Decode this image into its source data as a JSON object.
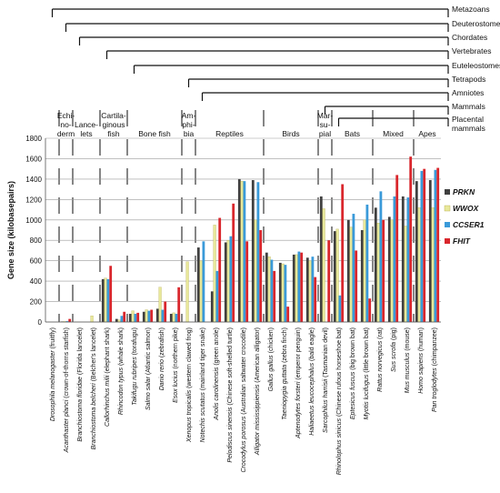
{
  "chart_data": {
    "type": "bar",
    "ylabel": "Gene size (kilobasepairs)",
    "ylim": [
      0,
      1800
    ],
    "yticks": [
      0,
      200,
      400,
      600,
      800,
      1000,
      1200,
      1400,
      1600,
      1800
    ],
    "grid": true,
    "legend_position": "right",
    "series": [
      {
        "name": "PRKN",
        "color": "#404040"
      },
      {
        "name": "WWOX",
        "color": "#e8e89a"
      },
      {
        "name": "CCSER1",
        "color": "#3a9ad9"
      },
      {
        "name": "FHIT",
        "color": "#d9262c"
      }
    ],
    "species": [
      {
        "sci": "Drosophila melanogaster",
        "common": "(fruitfly)",
        "values": [
          0,
          0,
          0,
          0
        ]
      },
      {
        "sci": "Acanthaster planci",
        "common": "(crown-of-thorns starfish)",
        "values": [
          5,
          5,
          8,
          30
        ]
      },
      {
        "sci": "Branchiostoma floridae",
        "common": "(Florida lancelet)",
        "values": [
          0,
          0,
          0,
          0
        ]
      },
      {
        "sci": "Branchiostoma belcheri",
        "common": "(Belcher's lancelet)",
        "values": [
          0,
          60,
          0,
          0
        ]
      },
      {
        "sci": "Callorhinchus milii",
        "common": "(elephant shark)",
        "values": [
          420,
          430,
          420,
          550
        ]
      },
      {
        "sci": "Rhincodon typus",
        "common": "(whale shark)",
        "values": [
          30,
          20,
          60,
          100
        ]
      },
      {
        "sci": "Takifugu rubripes",
        "common": "(torafugu)",
        "values": [
          80,
          110,
          80,
          90
        ]
      },
      {
        "sci": "Salmo salar",
        "common": "(Atlantic salmon)",
        "values": [
          100,
          120,
          110,
          120
        ]
      },
      {
        "sci": "Danio rerio",
        "common": "(zebrafish)",
        "values": [
          130,
          340,
          120,
          200
        ]
      },
      {
        "sci": "Esox lucius",
        "common": "(northern pike)",
        "values": [
          80,
          90,
          80,
          340
        ]
      },
      {
        "sci": "Xenopus tropicalis",
        "common": "(western clawed frog)",
        "values": [
          0,
          590,
          0,
          0
        ]
      },
      {
        "sci": "Notechis scutatus",
        "common": "(mainland tiger snake)",
        "values": [
          730,
          600,
          790,
          0
        ]
      },
      {
        "sci": "Anolis carolinensis",
        "common": "(green anole)",
        "values": [
          300,
          950,
          500,
          1020
        ]
      },
      {
        "sci": "Pelodiscus sinensis",
        "common": "(Chinese soft-shelled turtle)",
        "values": [
          780,
          800,
          840,
          1160
        ]
      },
      {
        "sci": "Crocodylus porosus",
        "common": "(Australian saltwater crocodile)",
        "values": [
          1400,
          1380,
          1380,
          790
        ]
      },
      {
        "sci": "Alligator mississippiensis",
        "common": "(American alligator)",
        "values": [
          1390,
          1000,
          1370,
          900
        ]
      },
      {
        "sci": "Gallus gallus",
        "common": "(chicken)",
        "values": [
          680,
          640,
          610,
          500
        ]
      },
      {
        "sci": "Taeniopygia guttata",
        "common": "(zebra finch)",
        "values": [
          580,
          570,
          560,
          150
        ]
      },
      {
        "sci": "Aptenodytes forsteri",
        "common": "(emperor penguin)",
        "values": [
          660,
          660,
          690,
          680
        ]
      },
      {
        "sci": "Haliaeetus leucocephalus",
        "common": "(bald eagle)",
        "values": [
          630,
          600,
          640,
          440
        ]
      },
      {
        "sci": "Sarcophilus harrisii",
        "common": "(Tasmanian devil)",
        "values": [
          1230,
          1110,
          0,
          800
        ]
      },
      {
        "sci": "Rhinolophus sinicus",
        "common": "(Chinese rufous horseshoe bat)",
        "values": [
          890,
          910,
          260,
          1350
        ]
      },
      {
        "sci": "Eptesicus fuscus",
        "common": "(big brown bat)",
        "values": [
          1000,
          930,
          1060,
          700
        ]
      },
      {
        "sci": "Myotis lucifugus",
        "common": "(little brown bat)",
        "values": [
          900,
          1000,
          1150,
          230
        ]
      },
      {
        "sci": "Rattus norvegicus",
        "common": "(rat)",
        "values": [
          1120,
          970,
          1280,
          1000
        ]
      },
      {
        "sci": "Sus scrofa",
        "common": "(pig)",
        "values": [
          1030,
          1000,
          1230,
          1440
        ]
      },
      {
        "sci": "Mus musculus",
        "common": "(mouse)",
        "values": [
          1230,
          940,
          1220,
          1620
        ]
      },
      {
        "sci": "Homo sapiens",
        "common": "(human)",
        "values": [
          1380,
          1120,
          1480,
          1500
        ]
      },
      {
        "sci": "Pan troglodytes",
        "common": "(chimpanzee)",
        "values": [
          1390,
          1120,
          1490,
          1510
        ]
      }
    ],
    "groups": [
      {
        "label": [
          "Echi-",
          "no-",
          "derm"
        ],
        "from": 1,
        "to": 1
      },
      {
        "label": [
          "Lance-",
          "lets"
        ],
        "from": 2,
        "to": 3
      },
      {
        "label": [
          "Cartila-",
          "ginous",
          "fish"
        ],
        "from": 4,
        "to": 5
      },
      {
        "label": [
          "Bone fish"
        ],
        "from": 6,
        "to": 9
      },
      {
        "label": [
          "Am-",
          "phi-",
          "bia"
        ],
        "from": 10,
        "to": 10
      },
      {
        "label": [
          "Reptiles"
        ],
        "from": 11,
        "to": 15
      },
      {
        "label": [
          "Birds"
        ],
        "from": 16,
        "to": 19
      },
      {
        "label": [
          "Mar-",
          "su-",
          "pial"
        ],
        "from": 20,
        "to": 20
      },
      {
        "label": [
          "Bats"
        ],
        "from": 21,
        "to": 23
      },
      {
        "label": [
          "Mixed"
        ],
        "from": 24,
        "to": 26
      },
      {
        "label": [
          "Apes"
        ],
        "from": 27,
        "to": 28
      }
    ],
    "clades": [
      {
        "label": [
          "Metazoans"
        ],
        "from": 0
      },
      {
        "label": [
          "Deuterostomes"
        ],
        "from": 1
      },
      {
        "label": [
          "Chordates"
        ],
        "from": 2
      },
      {
        "label": [
          "Vertebrates"
        ],
        "from": 4
      },
      {
        "label": [
          "Euteleostomes"
        ],
        "from": 6
      },
      {
        "label": [
          "Tetrapods"
        ],
        "from": 10
      },
      {
        "label": [
          "Amniotes"
        ],
        "from": 11
      },
      {
        "label": [
          "Mammals"
        ],
        "from": 20
      },
      {
        "label": [
          "Placental",
          "mammals"
        ],
        "from": 21
      }
    ]
  }
}
